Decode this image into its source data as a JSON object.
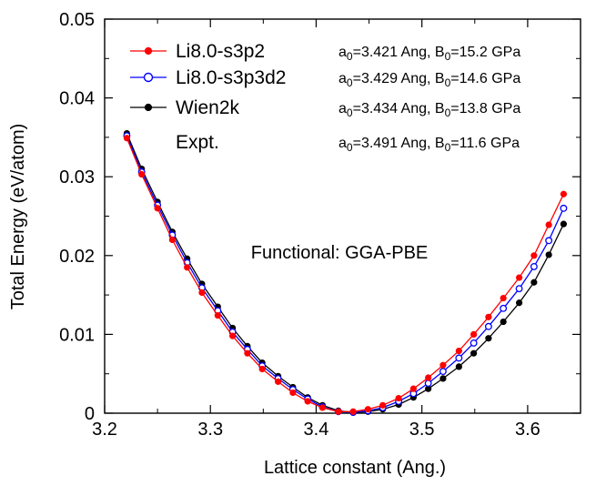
{
  "chart_data": {
    "type": "line",
    "xlabel": "Lattice constant (Ang.)",
    "ylabel": "Total Energy (eV/atom)",
    "xlim": [
      3.2,
      3.65
    ],
    "ylim": [
      0,
      0.05
    ],
    "xticks": [
      3.2,
      3.3,
      3.4,
      3.5,
      3.6
    ],
    "yticks": [
      0,
      0.01,
      0.02,
      0.03,
      0.04,
      0.05
    ],
    "xtick_labels": [
      "3.2",
      "3.3",
      "3.4",
      "3.5",
      "3.6"
    ],
    "ytick_labels": [
      "0",
      "0.01",
      "0.02",
      "0.03",
      "0.04",
      "0.05"
    ],
    "grid": false,
    "legend_position": "top-left",
    "annotation": "Functional: GGA-PBE",
    "series": [
      {
        "name": "Li8.0-s3p2",
        "color": "#ff0000",
        "marker": "filled-circle",
        "a0": 3.421,
        "x": [
          3.221,
          3.235,
          3.25,
          3.264,
          3.278,
          3.292,
          3.307,
          3.321,
          3.335,
          3.349,
          3.364,
          3.378,
          3.392,
          3.406,
          3.421,
          3.435,
          3.449,
          3.463,
          3.478,
          3.492,
          3.506,
          3.52,
          3.535,
          3.549,
          3.563,
          3.577,
          3.592,
          3.606,
          3.62,
          3.634
        ],
        "y": [
          0.0349,
          0.0303,
          0.026,
          0.022,
          0.0185,
          0.0153,
          0.0124,
          0.0098,
          0.0076,
          0.0056,
          0.004,
          0.0026,
          0.0015,
          0.0007,
          0.0002,
          0.0002,
          0.0005,
          0.001,
          0.0019,
          0.0031,
          0.0045,
          0.0061,
          0.0079,
          0.01,
          0.0122,
          0.0146,
          0.0172,
          0.02,
          0.0239,
          0.0278
        ]
      },
      {
        "name": "Li8.0-s3p3d2",
        "color": "#0000ff",
        "marker": "open-circle",
        "a0": 3.429,
        "x": [
          3.221,
          3.235,
          3.25,
          3.264,
          3.278,
          3.292,
          3.307,
          3.321,
          3.335,
          3.349,
          3.364,
          3.378,
          3.392,
          3.406,
          3.421,
          3.435,
          3.449,
          3.463,
          3.478,
          3.492,
          3.506,
          3.52,
          3.535,
          3.549,
          3.563,
          3.577,
          3.592,
          3.606,
          3.62,
          3.634
        ],
        "y": [
          0.0352,
          0.0306,
          0.0264,
          0.0226,
          0.0191,
          0.0159,
          0.013,
          0.0103,
          0.0081,
          0.006,
          0.0044,
          0.003,
          0.0018,
          0.0008,
          0.0002,
          0.0001,
          0.0003,
          0.0007,
          0.0015,
          0.0025,
          0.0038,
          0.0053,
          0.007,
          0.0089,
          0.011,
          0.0133,
          0.0158,
          0.0186,
          0.0219,
          0.026
        ]
      },
      {
        "name": "Wien2k",
        "color": "#000000",
        "marker": "filled-circle",
        "a0": 3.434,
        "x": [
          3.221,
          3.235,
          3.25,
          3.264,
          3.278,
          3.292,
          3.307,
          3.321,
          3.335,
          3.349,
          3.364,
          3.378,
          3.392,
          3.406,
          3.421,
          3.435,
          3.449,
          3.463,
          3.478,
          3.492,
          3.506,
          3.52,
          3.535,
          3.549,
          3.563,
          3.577,
          3.592,
          3.606,
          3.62,
          3.634
        ],
        "y": [
          0.0355,
          0.031,
          0.0268,
          0.023,
          0.0196,
          0.0164,
          0.0135,
          0.0108,
          0.0085,
          0.0064,
          0.0047,
          0.0033,
          0.002,
          0.001,
          0.0003,
          0.0001,
          0.0002,
          0.0005,
          0.0011,
          0.002,
          0.0031,
          0.0044,
          0.0059,
          0.0076,
          0.0095,
          0.0116,
          0.014,
          0.0166,
          0.0201,
          0.024
        ]
      }
    ],
    "legend_rows": [
      {
        "label": "Li8.0-s3p2",
        "a0_text": "=3.421 Ang, B",
        "b0_text": "=15.2 GPa"
      },
      {
        "label": "Li8.0-s3p3d2",
        "a0_text": "=3.429 Ang, B",
        "b0_text": "=14.6 GPa"
      },
      {
        "label": "Wien2k",
        "a0_text": "=3.434 Ang, B",
        "b0_text": "=13.8 GPa"
      },
      {
        "label": "Expt.",
        "a0_text": "=3.491 Ang, B",
        "b0_text": "=11.6 GPa"
      }
    ],
    "subscript_a": "a",
    "subscript_a_sub": "0",
    "subscript_b_sub": "0"
  }
}
